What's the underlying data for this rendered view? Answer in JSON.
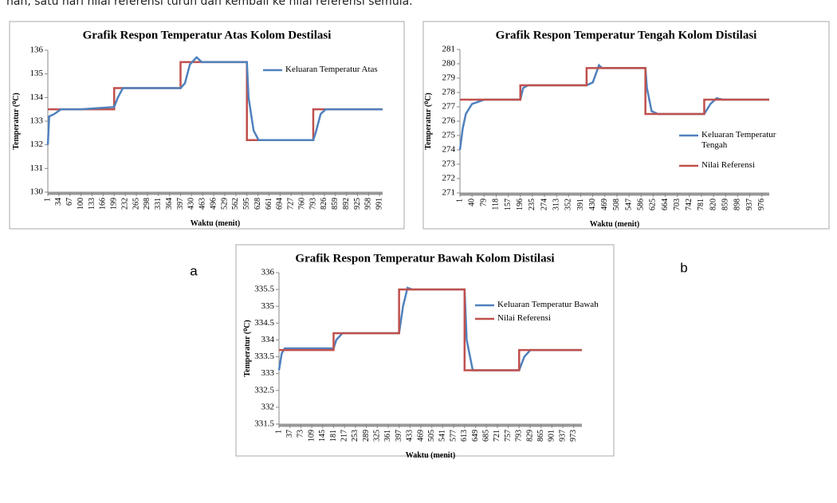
{
  "text": "nan, satu hari nilai referensi turun dan kembali ke nilai referensi semula.",
  "panel_labels": [
    "a",
    "b"
  ],
  "chart_data": [
    {
      "type": "line",
      "title": "Grafik Respon Temperatur Atas Kolom Destilasi",
      "x_label": "Waktu (menit)",
      "y_label": "Temperatur (⁰C)",
      "xlim": [
        1,
        1000
      ],
      "ylim": [
        130,
        136
      ],
      "xticks": [
        1,
        34,
        67,
        100,
        133,
        166,
        199,
        232,
        265,
        298,
        331,
        364,
        397,
        430,
        463,
        496,
        529,
        562,
        595,
        628,
        661,
        694,
        727,
        760,
        793,
        826,
        859,
        892,
        925,
        958,
        991
      ],
      "yticks": [
        130,
        131,
        132,
        133,
        134,
        135,
        136
      ],
      "series": [
        {
          "color": "#c0504d",
          "x": [
            1,
            199,
            199,
            397,
            397,
            595,
            595,
            793,
            793,
            1000
          ],
          "values": [
            133.5,
            133.5,
            134.4,
            134.4,
            135.5,
            135.5,
            132.2,
            132.2,
            133.5,
            133.5
          ]
        },
        {
          "name": "Keluaran Temperatur Atas",
          "color": "#4f81bd",
          "x": [
            1,
            5,
            20,
            40,
            100,
            199,
            210,
            225,
            300,
            397,
            410,
            425,
            445,
            460,
            595,
            600,
            615,
            630,
            793,
            800,
            815,
            830,
            1000
          ],
          "values": [
            132.0,
            133.2,
            133.3,
            133.5,
            133.5,
            133.6,
            134.0,
            134.4,
            134.4,
            134.4,
            134.6,
            135.4,
            135.7,
            135.5,
            135.5,
            134.0,
            132.6,
            132.2,
            132.2,
            132.5,
            133.3,
            133.5,
            133.5
          ]
        }
      ]
    },
    {
      "type": "line",
      "title": "Grafik Respon Temperatur Tengah Kolom Distilasi",
      "x_label": "Waktu (menit)",
      "y_label": "Temperatur (⁰C)",
      "xlim": [
        1,
        1000
      ],
      "ylim": [
        271,
        281
      ],
      "xticks": [
        1,
        40,
        79,
        118,
        157,
        196,
        235,
        274,
        313,
        352,
        391,
        430,
        469,
        508,
        547,
        586,
        625,
        664,
        703,
        742,
        781,
        820,
        859,
        898,
        937,
        976
      ],
      "yticks": [
        271,
        272,
        273,
        274,
        275,
        276,
        277,
        278,
        279,
        280,
        281
      ],
      "series": [
        {
          "name": "Keluaran Temperatur Tengah",
          "color": "#4f81bd",
          "x": [
            1,
            10,
            20,
            40,
            80,
            196,
            205,
            220,
            410,
            430,
            450,
            460,
            600,
            605,
            620,
            640,
            790,
            810,
            830,
            850,
            1000
          ],
          "values": [
            274,
            275.5,
            276.5,
            277.2,
            277.5,
            277.5,
            278.3,
            278.5,
            278.5,
            278.7,
            279.9,
            279.7,
            279.7,
            278.3,
            276.7,
            276.5,
            276.5,
            277.2,
            277.6,
            277.5,
            277.5
          ]
        },
        {
          "name": "Nilai Referensi",
          "color": "#c0504d",
          "x": [
            1,
            196,
            196,
            410,
            410,
            600,
            600,
            790,
            790,
            1000
          ],
          "values": [
            277.5,
            277.5,
            278.5,
            278.5,
            279.7,
            279.7,
            276.5,
            276.5,
            277.5,
            277.5
          ]
        }
      ]
    },
    {
      "type": "line",
      "title": "Grafik Respon Temperatur Bawah Kolom Distilasi",
      "x_label": "Waktu (menit)",
      "y_label": "Temperatur (⁰C)",
      "xlim": [
        1,
        1000
      ],
      "ylim": [
        331.5,
        336
      ],
      "xticks": [
        1,
        37,
        73,
        109,
        145,
        181,
        217,
        253,
        289,
        325,
        361,
        397,
        433,
        469,
        505,
        541,
        577,
        613,
        649,
        685,
        721,
        757,
        793,
        829,
        865,
        901,
        937,
        973
      ],
      "yticks": [
        331.5,
        332,
        332.5,
        333,
        333.5,
        334,
        334.5,
        335,
        335.5,
        336
      ],
      "series": [
        {
          "name": "Keluaran Temperatur Bawah",
          "color": "#4f81bd",
          "x": [
            1,
            10,
            20,
            181,
            190,
            210,
            397,
            410,
            425,
            440,
            613,
            620,
            640,
            793,
            810,
            830,
            1000
          ],
          "values": [
            333.1,
            333.6,
            333.75,
            333.75,
            334.0,
            334.2,
            334.2,
            335.0,
            335.55,
            335.5,
            335.5,
            334.0,
            333.1,
            333.1,
            333.5,
            333.7,
            333.7
          ]
        },
        {
          "name": "Nilai Referensi",
          "color": "#c0504d",
          "x": [
            1,
            181,
            181,
            397,
            397,
            613,
            613,
            793,
            793,
            1000
          ],
          "values": [
            333.7,
            333.7,
            334.2,
            334.2,
            335.5,
            335.5,
            333.1,
            333.1,
            333.7,
            333.7
          ]
        }
      ]
    }
  ]
}
